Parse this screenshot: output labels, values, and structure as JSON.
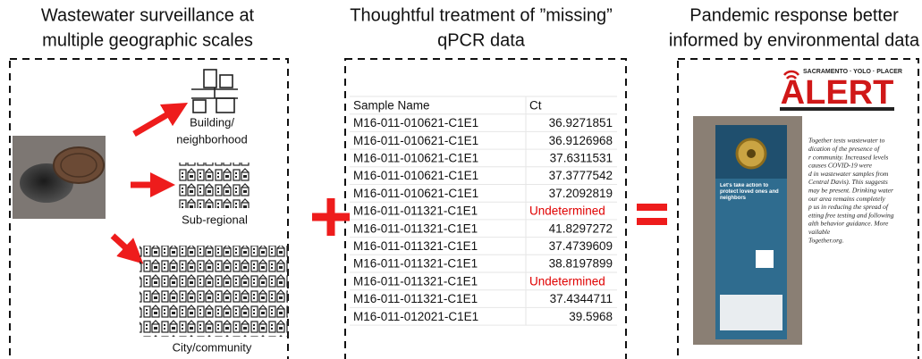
{
  "panels": [
    {
      "title_lines": [
        "Wastewater surveillance at",
        "multiple geographic scales"
      ],
      "scales": [
        "Building/",
        "neighborhood",
        "Sub-regional",
        "City/community"
      ]
    },
    {
      "title_lines": [
        "Thoughtful treatment of ”missing”",
        "qPCR data"
      ]
    },
    {
      "title_lines": [
        "Pandemic response better",
        "informed by environmental data"
      ]
    }
  ],
  "table": {
    "header": [
      "Sample Name",
      "Ct"
    ],
    "rows": [
      [
        "M16-011-010621-C1E1",
        "36.9271851"
      ],
      [
        "M16-011-010621-C1E1",
        "36.9126968"
      ],
      [
        "M16-011-010621-C1E1",
        "37.6311531"
      ],
      [
        "M16-011-010621-C1E1",
        "37.3777542"
      ],
      [
        "M16-011-010621-C1E1",
        "37.2092819"
      ],
      [
        "M16-011-011321-C1E1",
        "Undetermined"
      ],
      [
        "M16-011-011321-C1E1",
        "41.8297272"
      ],
      [
        "M16-011-011321-C1E1",
        "37.4739609"
      ],
      [
        "M16-011-011321-C1E1",
        "38.8197899"
      ],
      [
        "M16-011-011321-C1E1",
        "Undetermined"
      ],
      [
        "M16-011-011321-C1E1",
        "37.4344711"
      ],
      [
        "M16-011-012021-C1E1",
        "39.5968"
      ]
    ]
  },
  "alert": {
    "region": "SACRAMENTO · YOLO · PLACER",
    "word": "ALERT",
    "text_lines": [
      "Together tests wastewater to",
      "dication of the presence of",
      "r community. Increased levels",
      "causes COVID-19 were",
      "d in wastewater samples from",
      "Central Davis). This suggests",
      "may be present. Drinking water",
      "our area remains completely",
      "p us in reducing the spread of",
      "etting free testing and following",
      "alth behavior guidance. More",
      "vailable",
      "Together.org."
    ],
    "hanger_heading": "Let's take action to protect loved ones and neighbors"
  }
}
